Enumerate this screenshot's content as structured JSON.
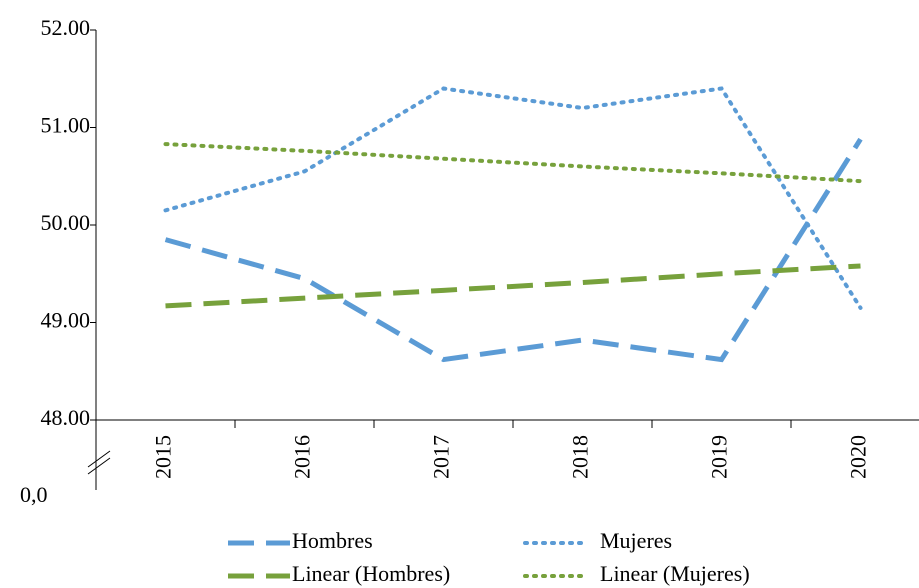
{
  "chart_data": {
    "type": "line",
    "categories": [
      "2015",
      "2016",
      "2017",
      "2018",
      "2019",
      "2020"
    ],
    "series": [
      {
        "name": "Hombres",
        "color": "#5b9bd5",
        "style": "dash",
        "values": [
          49.85,
          49.45,
          48.62,
          48.82,
          48.62,
          50.88
        ]
      },
      {
        "name": "Mujeres",
        "color": "#5b9bd5",
        "style": "dot",
        "values": [
          50.15,
          50.55,
          51.4,
          51.2,
          51.4,
          49.15
        ]
      },
      {
        "name": "Linear (Hombres)",
        "color": "#77a13c",
        "style": "dash",
        "values": [
          49.17,
          49.25,
          49.33,
          49.41,
          49.5,
          49.58
        ]
      },
      {
        "name": "Linear (Mujeres)",
        "color": "#77a13c",
        "style": "dot",
        "values": [
          50.83,
          50.76,
          50.68,
          50.6,
          50.53,
          50.45
        ]
      }
    ],
    "ylim": [
      48,
      52
    ],
    "yticks": [
      {
        "value": 48,
        "label": "48.00"
      },
      {
        "value": 49,
        "label": "49.00"
      },
      {
        "value": 50,
        "label": "50.00"
      },
      {
        "value": 51,
        "label": "51.00"
      },
      {
        "value": 52,
        "label": "52.00"
      }
    ],
    "axis_break_label": "0,0",
    "legend": "bottom"
  }
}
